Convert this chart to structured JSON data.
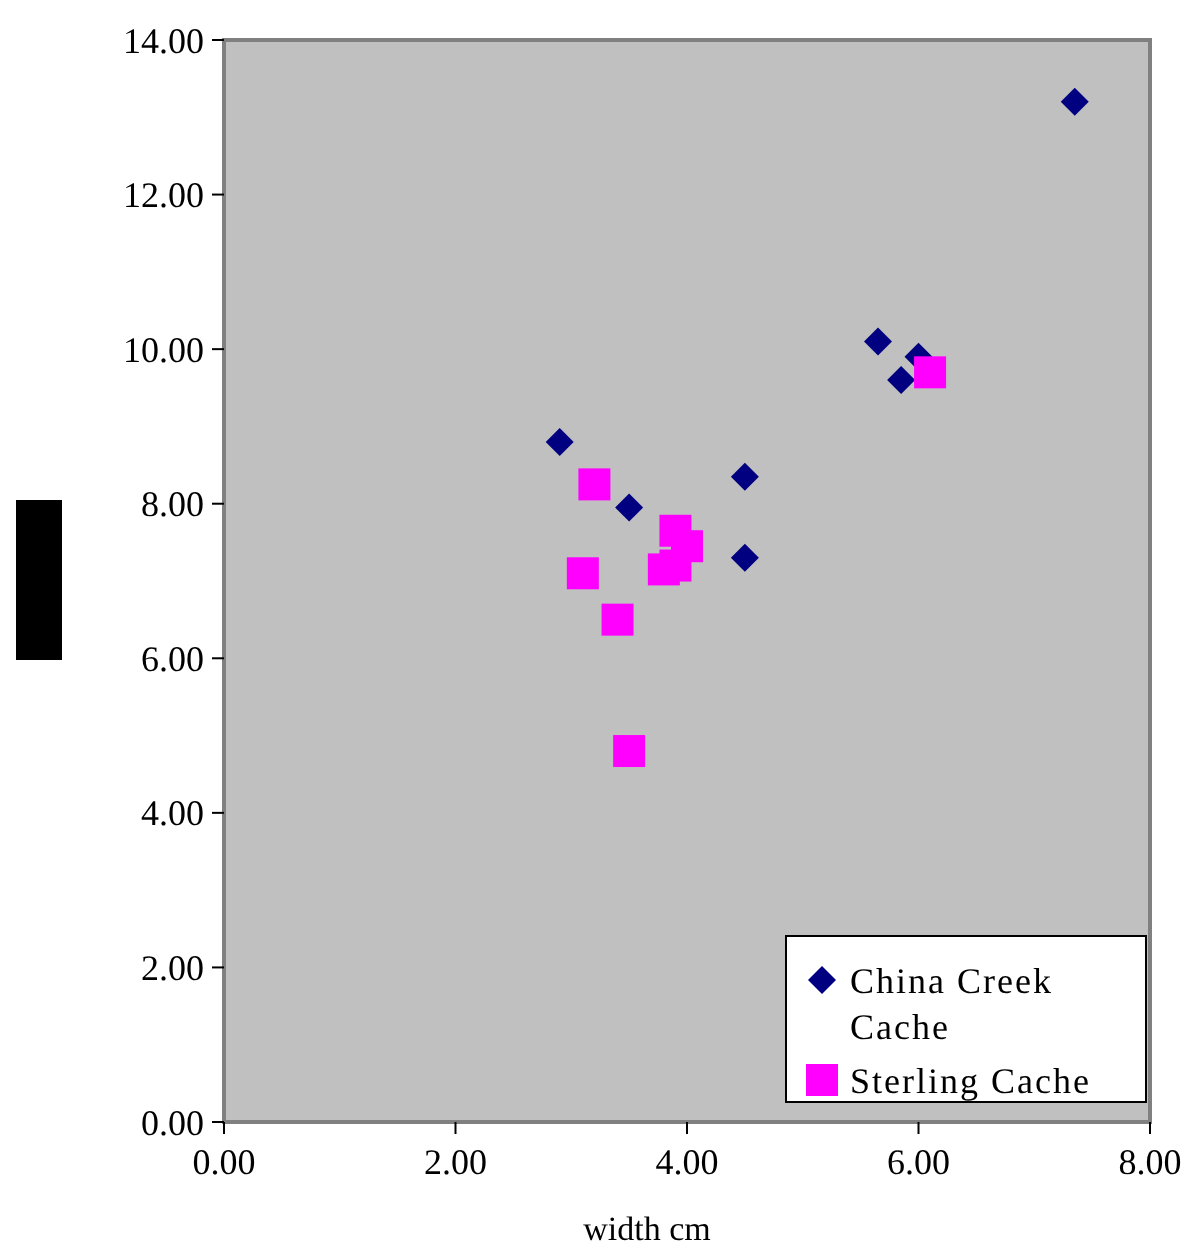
{
  "chart_data": {
    "type": "scatter",
    "xlabel": "width cm",
    "xlim": [
      0,
      8
    ],
    "xticks": [
      {
        "value": 0,
        "label": "0.00"
      },
      {
        "value": 2,
        "label": "2.00"
      },
      {
        "value": 4,
        "label": "4.00"
      },
      {
        "value": 6,
        "label": "6.00"
      },
      {
        "value": 8,
        "label": "8.00"
      }
    ],
    "ylim": [
      0,
      14
    ],
    "yticks": [
      {
        "value": 0,
        "label": "0.00"
      },
      {
        "value": 2,
        "label": "2.00"
      },
      {
        "value": 4,
        "label": "4.00"
      },
      {
        "value": 6,
        "label": "6.00"
      },
      {
        "value": 8,
        "label": "8.00"
      },
      {
        "value": 10,
        "label": "10.00"
      },
      {
        "value": 12,
        "label": "12.00"
      },
      {
        "value": 14,
        "label": "14.00"
      }
    ],
    "grid": false,
    "legend": "bottom right",
    "series": [
      {
        "name": "China Creek Cache",
        "color": "#000080",
        "marker": "diamond",
        "x": [
          2.9,
          3.5,
          4.5,
          4.5,
          5.65,
          6.0,
          5.85,
          7.35
        ],
        "values": [
          8.8,
          7.95,
          8.35,
          7.3,
          10.1,
          9.9,
          9.6,
          13.2
        ]
      },
      {
        "name": "Sterling Cache",
        "color": "#ff00ff",
        "marker": "square",
        "x": [
          3.2,
          3.1,
          3.4,
          3.5,
          3.9,
          4.0,
          3.8,
          3.9,
          6.1
        ],
        "values": [
          8.25,
          7.1,
          6.5,
          4.8,
          7.65,
          7.45,
          7.15,
          7.2,
          9.7
        ]
      }
    ]
  }
}
